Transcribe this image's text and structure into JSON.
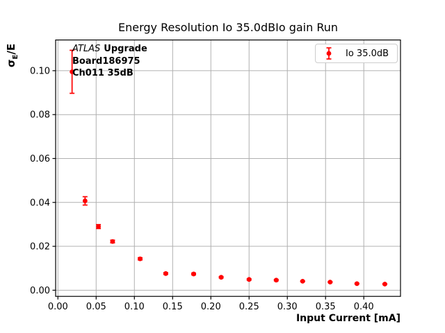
{
  "chart_data": {
    "type": "scatter",
    "title": "Energy Resolution Io 35.0dBIo gain Run",
    "xlabel": "Input Current [mA]",
    "ylabel": "σE/E",
    "ylabel_parts": {
      "sigma": "σ",
      "sub": "E",
      "rest": "/E"
    },
    "xlim": [
      -0.003,
      0.448
    ],
    "ylim": [
      -0.0028,
      0.114
    ],
    "grid": true,
    "xticks": {
      "values": [
        0.0,
        0.05,
        0.1,
        0.15,
        0.2,
        0.25,
        0.3,
        0.35,
        0.4
      ],
      "labels": [
        "0.00",
        "0.05",
        "0.10",
        "0.15",
        "0.20",
        "0.25",
        "0.30",
        "0.35",
        "0.40"
      ]
    },
    "yticks": {
      "values": [
        0.0,
        0.02,
        0.04,
        0.06,
        0.08,
        0.1
      ],
      "labels": [
        "0.00",
        "0.02",
        "0.04",
        "0.06",
        "0.08",
        "0.10"
      ]
    },
    "legend": {
      "label": "Io 35.0dB",
      "position": "upper right"
    },
    "series": [
      {
        "name": "Io 35.0dB",
        "marker": "circle",
        "color": "#ff0000",
        "x": [
          0.0185,
          0.0355,
          0.053,
          0.0715,
          0.1075,
          0.141,
          0.1775,
          0.2135,
          0.25,
          0.2855,
          0.32,
          0.356,
          0.391,
          0.4275
        ],
        "y": [
          0.0995,
          0.0407,
          0.029,
          0.0222,
          0.0143,
          0.0076,
          0.0074,
          0.0059,
          0.0049,
          0.0046,
          0.0041,
          0.0037,
          0.003,
          0.0028
        ],
        "yerr": [
          0.0098,
          0.0019,
          0.0009,
          0.0006,
          0.0005,
          0.0004,
          0.0004,
          0.0003,
          0.0003,
          0.0003,
          0.0002,
          0.0002,
          0.0002,
          0.0002
        ]
      }
    ],
    "annotation": {
      "line1_italic": "ATLAS",
      "line1_bold": "Upgrade",
      "line2": "Board186975",
      "line3": "Ch011 35dB"
    },
    "colors": {
      "marker": "#ff0000",
      "grid": "#b0b0b0",
      "axis": "#000000",
      "text": "#000000",
      "background": "#ffffff",
      "legend_border": "#cccccc"
    }
  }
}
